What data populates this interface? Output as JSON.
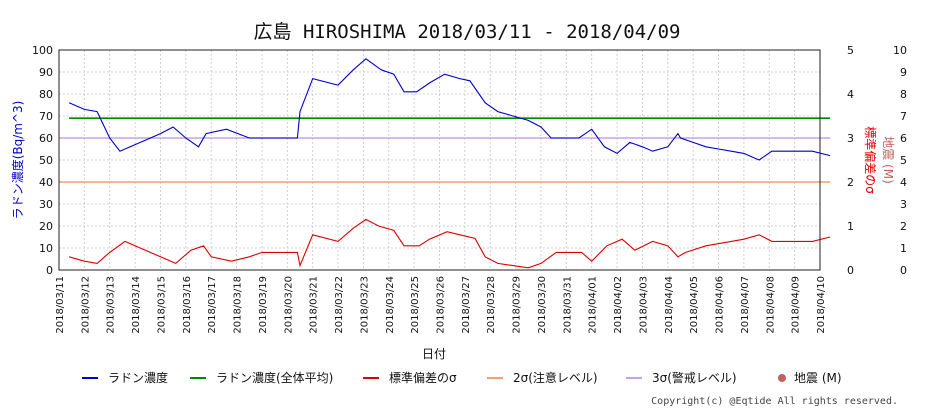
{
  "chart_data": {
    "type": "line",
    "title": "広島 HIROSHIMA 2018/03/11 - 2018/04/09",
    "xlabel": "日付",
    "ylabel_left": "ラドン濃度(Bq/m^3)",
    "ylabel_right1": "標準偏差のσ",
    "ylabel_right2": "地震 (M)",
    "ylim_left": [
      0,
      100
    ],
    "ylim_right1": [
      0,
      5
    ],
    "ylim_right2": [
      0,
      10
    ],
    "xlim": [
      0,
      30
    ],
    "y_ticks_left": [
      "0",
      "10",
      "20",
      "30",
      "40",
      "50",
      "60",
      "70",
      "80",
      "90",
      "100"
    ],
    "y_ticks_right1": [
      "0",
      "1",
      "2",
      "3",
      "4",
      "5"
    ],
    "y_ticks_right2": [
      "0",
      "1",
      "2",
      "3",
      "4",
      "5",
      "6",
      "7",
      "8",
      "9",
      "10"
    ],
    "x_tick_labels": [
      "2018/03/11",
      "2018/03/12",
      "2018/03/13",
      "2018/03/14",
      "2018/03/15",
      "2018/03/16",
      "2018/03/17",
      "2018/03/18",
      "2018/03/19",
      "2018/03/20",
      "2018/03/21",
      "2018/03/22",
      "2018/03/23",
      "2018/03/24",
      "2018/03/25",
      "2018/03/26",
      "2018/03/27",
      "2018/03/28",
      "2018/03/29",
      "2018/03/30",
      "2018/03/31",
      "2018/04/01",
      "2018/04/02",
      "2018/04/03",
      "2018/04/04",
      "2018/04/05",
      "2018/04/06",
      "2018/04/07",
      "2018/04/08",
      "2018/04/09",
      "2018/04/10"
    ],
    "grid": true,
    "legend_position": "bottom",
    "series": [
      {
        "name": "ラドン濃度",
        "axis": "left",
        "color": "#0000cc",
        "points": [
          [
            0.4,
            76
          ],
          [
            1.0,
            73
          ],
          [
            1.5,
            72
          ],
          [
            2.0,
            60
          ],
          [
            2.4,
            54
          ],
          [
            3.0,
            57
          ],
          [
            4.0,
            62
          ],
          [
            4.5,
            65
          ],
          [
            5.0,
            60
          ],
          [
            5.5,
            56
          ],
          [
            5.8,
            62
          ],
          [
            6.6,
            64
          ],
          [
            7.5,
            60
          ],
          [
            8.0,
            60
          ],
          [
            9.4,
            60
          ],
          [
            9.5,
            72
          ],
          [
            10.0,
            87
          ],
          [
            11.0,
            84
          ],
          [
            11.6,
            91
          ],
          [
            12.1,
            96
          ],
          [
            12.7,
            91
          ],
          [
            13.2,
            89
          ],
          [
            13.6,
            81
          ],
          [
            14.1,
            81
          ],
          [
            14.6,
            85
          ],
          [
            15.2,
            89
          ],
          [
            15.8,
            87
          ],
          [
            16.2,
            86
          ],
          [
            16.8,
            76
          ],
          [
            17.3,
            72
          ],
          [
            17.9,
            70
          ],
          [
            18.5,
            68
          ],
          [
            19.0,
            65
          ],
          [
            19.4,
            60
          ],
          [
            20.0,
            60
          ],
          [
            20.5,
            60
          ],
          [
            21.0,
            64
          ],
          [
            21.5,
            56
          ],
          [
            22.0,
            53
          ],
          [
            22.5,
            58
          ],
          [
            23.0,
            56
          ],
          [
            23.4,
            54
          ],
          [
            24.0,
            56
          ],
          [
            24.4,
            62
          ],
          [
            24.5,
            60
          ],
          [
            25.0,
            58
          ],
          [
            25.5,
            56
          ],
          [
            26.0,
            55
          ],
          [
            26.5,
            54
          ],
          [
            27.0,
            53
          ],
          [
            27.6,
            50
          ],
          [
            28.1,
            54
          ],
          [
            29.0,
            54
          ],
          [
            29.7,
            54
          ],
          [
            30.4,
            52
          ]
        ]
      },
      {
        "name": "ラドン濃度(全体平均)",
        "axis": "left",
        "color": "#008800",
        "points": [
          [
            0.4,
            69
          ],
          [
            30.4,
            69
          ]
        ]
      },
      {
        "name": "標準偏差のσ",
        "axis": "right1",
        "color": "#dd0000",
        "points": [
          [
            0.4,
            0.3
          ],
          [
            1.0,
            0.2
          ],
          [
            1.5,
            0.15
          ],
          [
            2.0,
            0.4
          ],
          [
            2.6,
            0.65
          ],
          [
            3.2,
            0.5
          ],
          [
            4.0,
            0.3
          ],
          [
            4.6,
            0.15
          ],
          [
            5.2,
            0.45
          ],
          [
            5.7,
            0.55
          ],
          [
            6.0,
            0.3
          ],
          [
            6.8,
            0.2
          ],
          [
            7.5,
            0.3
          ],
          [
            8.0,
            0.4
          ],
          [
            9.4,
            0.4
          ],
          [
            9.5,
            0.1
          ],
          [
            10.0,
            0.8
          ],
          [
            11.0,
            0.65
          ],
          [
            11.6,
            0.95
          ],
          [
            12.1,
            1.15
          ],
          [
            12.6,
            1.0
          ],
          [
            13.2,
            0.9
          ],
          [
            13.6,
            0.55
          ],
          [
            14.2,
            0.55
          ],
          [
            14.6,
            0.7
          ],
          [
            15.3,
            0.87
          ],
          [
            15.8,
            0.8
          ],
          [
            16.4,
            0.72
          ],
          [
            16.8,
            0.3
          ],
          [
            17.3,
            0.15
          ],
          [
            17.9,
            0.1
          ],
          [
            18.5,
            0.05
          ],
          [
            19.0,
            0.15
          ],
          [
            19.6,
            0.4
          ],
          [
            20.0,
            0.4
          ],
          [
            20.6,
            0.4
          ],
          [
            21.0,
            0.2
          ],
          [
            21.6,
            0.55
          ],
          [
            22.2,
            0.7
          ],
          [
            22.7,
            0.45
          ],
          [
            23.4,
            0.65
          ],
          [
            24.0,
            0.55
          ],
          [
            24.4,
            0.3
          ],
          [
            24.7,
            0.4
          ],
          [
            25.5,
            0.55
          ],
          [
            26.5,
            0.65
          ],
          [
            27.0,
            0.7
          ],
          [
            27.6,
            0.8
          ],
          [
            28.1,
            0.65
          ],
          [
            29.0,
            0.65
          ],
          [
            29.7,
            0.65
          ],
          [
            30.4,
            0.75
          ]
        ]
      },
      {
        "name": "2σ(注意レベル)",
        "axis": "right1",
        "color": "#f4a070",
        "points": [
          [
            0,
            2
          ],
          [
            30.4,
            2
          ]
        ]
      },
      {
        "name": "3σ(警戒レベル)",
        "axis": "right1",
        "color": "#c8a0f0",
        "points": [
          [
            0,
            3
          ],
          [
            30.4,
            3
          ]
        ]
      },
      {
        "name": "地震 (M)",
        "axis": "right2",
        "color": "#c06060",
        "marker": "circle",
        "points": []
      }
    ]
  },
  "copyright": "Copyright(c) @Eqtide All rights reserved."
}
